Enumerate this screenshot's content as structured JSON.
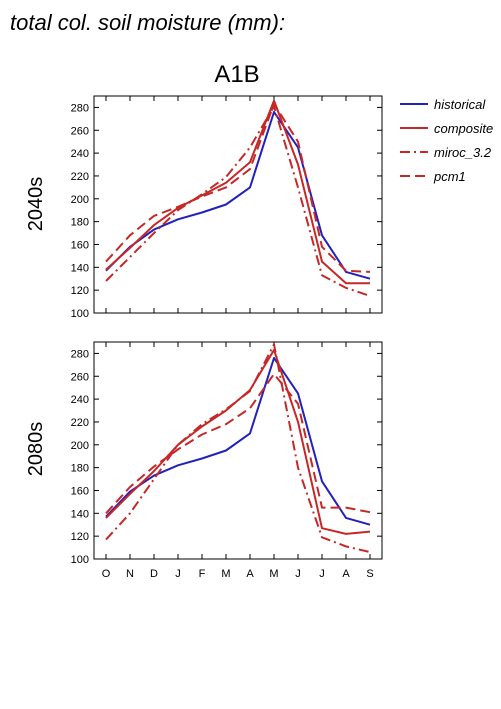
{
  "figure": {
    "title": "total col. soil moisture (mm):",
    "scenario": "A1B"
  },
  "legend": [
    {
      "name": "historical",
      "color": "#2222bb",
      "dash": "solid"
    },
    {
      "name": "composite",
      "color": "#c62828",
      "dash": "solid"
    },
    {
      "name": "miroc_3.2",
      "color": "#c62828",
      "dash": "dashdot"
    },
    {
      "name": "pcm1",
      "color": "#c62828",
      "dash": "dashed"
    }
  ],
  "chart_data": [
    {
      "type": "line",
      "title": "2040s",
      "categories": [
        "O",
        "N",
        "D",
        "J",
        "F",
        "M",
        "A",
        "M",
        "J",
        "J",
        "A",
        "S"
      ],
      "ylim": [
        100,
        290
      ],
      "yticks": [
        100,
        120,
        140,
        160,
        180,
        200,
        220,
        240,
        260,
        280
      ],
      "grid": false,
      "series": [
        {
          "name": "historical",
          "values": [
            137,
            158,
            173,
            182,
            188,
            195,
            210,
            276,
            245,
            168,
            136,
            130
          ]
        },
        {
          "name": "composite",
          "values": [
            138,
            157,
            177,
            192,
            203,
            214,
            232,
            286,
            230,
            145,
            126,
            126
          ]
        },
        {
          "name": "miroc_3.2",
          "values": [
            128,
            149,
            170,
            190,
            204,
            219,
            245,
            281,
            210,
            133,
            122,
            115
          ]
        },
        {
          "name": "pcm1",
          "values": [
            145,
            168,
            185,
            193,
            202,
            210,
            226,
            283,
            250,
            158,
            137,
            136
          ]
        }
      ]
    },
    {
      "type": "line",
      "title": "2080s",
      "categories": [
        "O",
        "N",
        "D",
        "J",
        "F",
        "M",
        "A",
        "M",
        "J",
        "J",
        "A",
        "S"
      ],
      "ylim": [
        100,
        290
      ],
      "yticks": [
        100,
        120,
        140,
        160,
        180,
        200,
        220,
        240,
        260,
        280
      ],
      "grid": false,
      "series": [
        {
          "name": "historical",
          "values": [
            137,
            159,
            173,
            182,
            188,
            195,
            210,
            276,
            245,
            168,
            136,
            130
          ]
        },
        {
          "name": "composite",
          "values": [
            136,
            157,
            177,
            200,
            216,
            230,
            248,
            283,
            220,
            127,
            122,
            124
          ]
        },
        {
          "name": "miroc_3.2",
          "values": [
            117,
            140,
            170,
            200,
            218,
            231,
            247,
            288,
            180,
            119,
            111,
            106
          ]
        },
        {
          "name": "pcm1",
          "values": [
            140,
            163,
            181,
            196,
            209,
            218,
            232,
            262,
            236,
            145,
            145,
            141
          ]
        }
      ]
    }
  ]
}
